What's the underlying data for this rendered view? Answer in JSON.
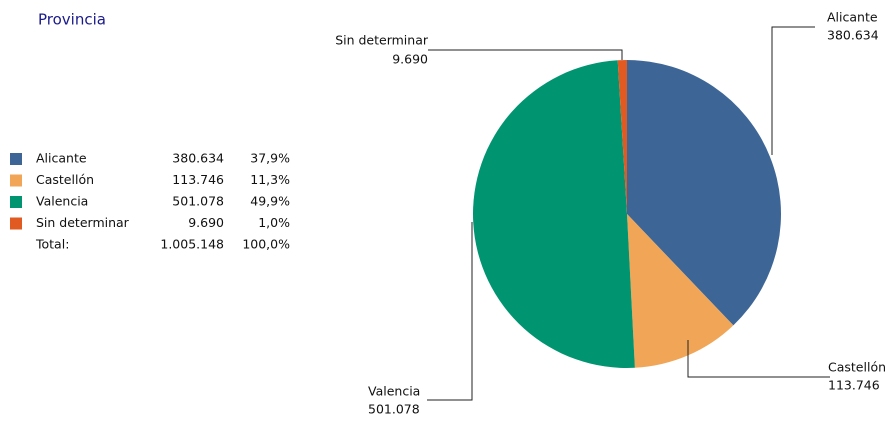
{
  "chart_data": {
    "type": "pie",
    "title": "Provincia",
    "categories": [
      "Alicante",
      "Castellón",
      "Valencia",
      "Sin determinar"
    ],
    "values": [
      380634,
      113746,
      501078,
      9690
    ],
    "value_labels": [
      "380.634",
      "113.746",
      "501.078",
      "9.690"
    ],
    "percent_labels": [
      "37,9%",
      "11,3%",
      "49,9%",
      "1,0%"
    ],
    "colors": [
      "#3d6697",
      "#f0a656",
      "#009470",
      "#e05a22"
    ],
    "total": {
      "label": "Total:",
      "value": "1.005.148",
      "percent": "100,0%"
    }
  }
}
